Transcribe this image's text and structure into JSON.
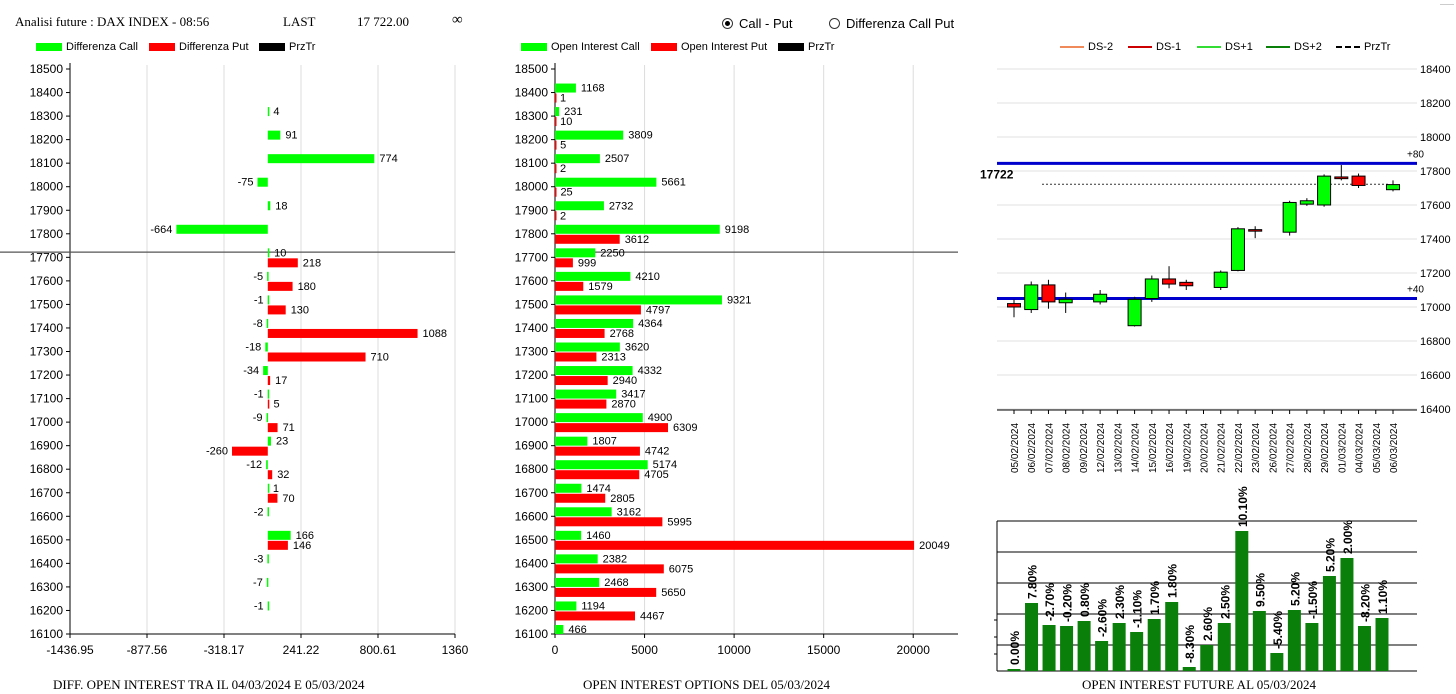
{
  "header": {
    "title": "Analisi future : DAX INDEX - 08:56",
    "last_label": "LAST",
    "last_value": "17 722.00",
    "infinity": "∞"
  },
  "radio": {
    "options": [
      "Call - Put",
      "Differenza Call Put"
    ],
    "selected": 0
  },
  "colors": {
    "call": "#00ff00",
    "put": "#ff0000",
    "price": "#000000",
    "level": "#0000cc",
    "oi_bar": "#0a800a"
  },
  "chart_data": [
    {
      "type": "bar",
      "orientation": "horizontal",
      "caption": "DIFF. OPEN INTEREST TRA IL 04/03/2024 E 05/03/2024",
      "legend": [
        "Differenza Call",
        "Differenza Put",
        "PrzTr"
      ],
      "y_ticks": [
        "18500",
        "18400",
        "18300",
        "18200",
        "18100",
        "18000",
        "17900",
        "17800",
        "17700",
        "17600",
        "17500",
        "17400",
        "17300",
        "17200",
        "17100",
        "17000",
        "16900",
        "16800",
        "16700",
        "16600",
        "16500",
        "16400",
        "16300",
        "16200",
        "16100"
      ],
      "x_ticks": [
        "-1436.95",
        "-877.56",
        "-318.17",
        "241.22",
        "800.61",
        "1360"
      ],
      "xlim": [
        -1436.95,
        1360
      ],
      "price_line": 17722,
      "series": [
        {
          "name": "Differenza Call",
          "points": [
            [
              18300,
              4
            ],
            [
              18200,
              91
            ],
            [
              18100,
              774
            ],
            [
              18000,
              -75
            ],
            [
              17900,
              18
            ],
            [
              17800,
              -664
            ],
            [
              17700,
              10
            ],
            [
              17600,
              -5
            ],
            [
              17500,
              -1
            ],
            [
              17400,
              -8
            ],
            [
              17300,
              -18
            ],
            [
              17200,
              -34
            ],
            [
              17100,
              -1
            ],
            [
              17000,
              -9
            ],
            [
              16900,
              23
            ],
            [
              16800,
              -12
            ],
            [
              16700,
              1
            ],
            [
              16600,
              -2
            ],
            [
              16500,
              166
            ],
            [
              16400,
              -3
            ],
            [
              16300,
              -7
            ],
            [
              16200,
              -1
            ]
          ]
        },
        {
          "name": "Differenza Put",
          "points": [
            [
              17700,
              218
            ],
            [
              17600,
              180
            ],
            [
              17500,
              130
            ],
            [
              17400,
              1088
            ],
            [
              17300,
              710
            ],
            [
              17200,
              17
            ],
            [
              17100,
              5
            ],
            [
              17000,
              71
            ],
            [
              16900,
              -260
            ],
            [
              16800,
              32
            ],
            [
              16700,
              70
            ],
            [
              16500,
              146
            ]
          ]
        }
      ]
    },
    {
      "type": "bar",
      "orientation": "horizontal",
      "caption": "OPEN INTEREST OPTIONS DEL 05/03/2024",
      "legend": [
        "Open Interest Call",
        "Open Interest Put",
        "PrzTr"
      ],
      "y_ticks": [
        "18500",
        "18400",
        "18300",
        "18200",
        "18100",
        "18000",
        "17900",
        "17800",
        "17700",
        "17600",
        "17500",
        "17400",
        "17300",
        "17200",
        "17100",
        "17000",
        "16900",
        "16800",
        "16700",
        "16600",
        "16500",
        "16400",
        "16300",
        "16200",
        "16100"
      ],
      "x_ticks": [
        "0",
        "5000",
        "10000",
        "15000",
        "20000"
      ],
      "xlim": [
        0,
        22500
      ],
      "price_line": 17722,
      "series": [
        {
          "name": "Open Interest Call",
          "points": [
            [
              18400,
              1168
            ],
            [
              18300,
              231
            ],
            [
              18200,
              3809
            ],
            [
              18100,
              2507
            ],
            [
              18000,
              5661
            ],
            [
              17900,
              2732
            ],
            [
              17800,
              9198
            ],
            [
              17700,
              2250
            ],
            [
              17600,
              4210
            ],
            [
              17500,
              9321
            ],
            [
              17400,
              4364
            ],
            [
              17300,
              3620
            ],
            [
              17200,
              4332
            ],
            [
              17100,
              3417
            ],
            [
              17000,
              4900
            ],
            [
              16900,
              1807
            ],
            [
              16800,
              5174
            ],
            [
              16700,
              1474
            ],
            [
              16600,
              3162
            ],
            [
              16500,
              1460
            ],
            [
              16400,
              2382
            ],
            [
              16300,
              2468
            ],
            [
              16200,
              1194
            ],
            [
              16100,
              466
            ]
          ]
        },
        {
          "name": "Open Interest Put",
          "points": [
            [
              18400,
              1
            ],
            [
              18300,
              10
            ],
            [
              18200,
              5
            ],
            [
              18100,
              2
            ],
            [
              18000,
              25
            ],
            [
              17900,
              2
            ],
            [
              17800,
              3612
            ],
            [
              17700,
              999
            ],
            [
              17600,
              1579
            ],
            [
              17500,
              4797
            ],
            [
              17400,
              2768
            ],
            [
              17300,
              2313
            ],
            [
              17200,
              2940
            ],
            [
              17100,
              2870
            ],
            [
              17000,
              6309
            ],
            [
              16900,
              4742
            ],
            [
              16800,
              4705
            ],
            [
              16700,
              2805
            ],
            [
              16600,
              5995
            ],
            [
              16500,
              20049
            ],
            [
              16400,
              6075
            ],
            [
              16300,
              5650
            ],
            [
              16200,
              4467
            ]
          ]
        }
      ]
    },
    {
      "type": "candlestick",
      "legend": [
        "DS-2",
        "DS-1",
        "DS+1",
        "DS+2",
        "PrzTr"
      ],
      "legend_colors": [
        "#f08a5a",
        "#cc0000",
        "#33dd33",
        "#0a800a",
        "#000000"
      ],
      "y_ticks": [
        "18400",
        "18200",
        "18000",
        "17800",
        "17600",
        "17400",
        "17200",
        "17000",
        "16800",
        "16600",
        "16400"
      ],
      "ylim": [
        16400,
        18400
      ],
      "price_label": "17722",
      "price": 17722,
      "levels": [
        {
          "value": 17845,
          "label": "+80"
        },
        {
          "value": 17050,
          "label": "+40"
        }
      ],
      "dates": [
        "05/02/2024",
        "06/02/2024",
        "07/02/2024",
        "08/02/2024",
        "09/02/2024",
        "12/02/2024",
        "13/02/2024",
        "14/02/2024",
        "15/02/2024",
        "16/02/2024",
        "19/02/2024",
        "20/02/2024",
        "21/02/2024",
        "22/02/2024",
        "23/02/2024",
        "26/02/2024",
        "27/02/2024",
        "28/02/2024",
        "29/02/2024",
        "01/03/2024",
        "04/03/2024",
        "05/03/2024",
        "06/03/2024"
      ],
      "candles": [
        [
          17020,
          17000,
          17045,
          16940
        ],
        [
          16985,
          17130,
          17150,
          16965
        ],
        [
          17130,
          17030,
          17160,
          16990
        ],
        [
          17025,
          17045,
          17085,
          16965
        ],
        null,
        [
          17030,
          17075,
          17100,
          17015
        ],
        null,
        [
          16890,
          17045,
          17060,
          16885
        ],
        [
          17050,
          17165,
          17185,
          17030
        ],
        [
          17165,
          17135,
          17240,
          17110
        ],
        [
          17145,
          17125,
          17160,
          17100
        ],
        null,
        [
          17115,
          17205,
          17215,
          17100
        ],
        [
          17215,
          17460,
          17470,
          17210
        ],
        [
          17455,
          17450,
          17475,
          17405
        ],
        null,
        [
          17440,
          17615,
          17625,
          17420
        ],
        [
          17605,
          17625,
          17640,
          17595
        ],
        [
          17600,
          17770,
          17780,
          17590
        ],
        [
          17765,
          17755,
          17835,
          17745
        ],
        [
          17770,
          17715,
          17785,
          17700
        ],
        null,
        [
          17690,
          17720,
          17745,
          17680
        ]
      ]
    },
    {
      "type": "bar",
      "caption": "OPEN INTEREST FUTURE AL 05/03/2024",
      "labels": [
        "0.00%",
        "7.80%",
        "-2.70%",
        "-0.20%",
        "0.80%",
        "-2.60%",
        "2.30%",
        "-1.10%",
        "1.70%",
        "1.80%",
        "-8.30%",
        "2.60%",
        "2.50%",
        "10.10%",
        "9.50%",
        "-5.40%",
        "5.20%",
        "-1.50%",
        "5.20%",
        "2.00%",
        "-8.20%",
        "1.10%"
      ],
      "values": [
        2,
        68,
        46,
        45,
        50,
        30,
        48,
        39,
        52,
        69,
        4,
        26,
        48,
        140,
        60,
        18,
        61,
        48,
        95,
        113,
        45,
        53
      ],
      "ylim": [
        0,
        150
      ]
    }
  ]
}
